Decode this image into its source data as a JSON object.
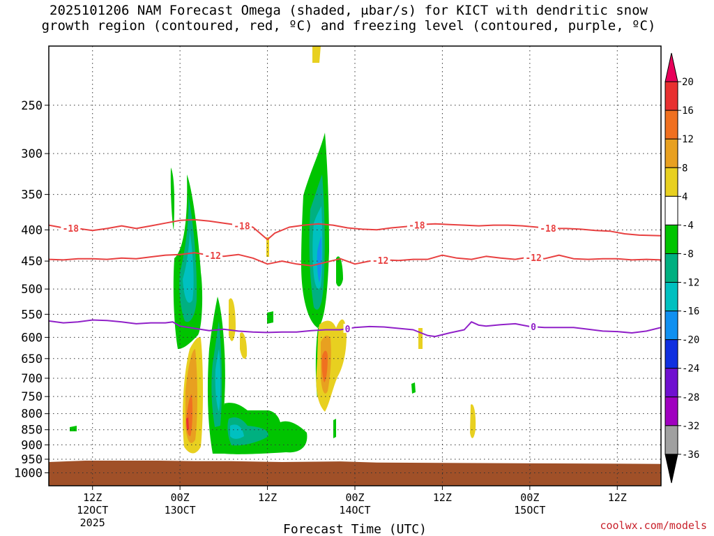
{
  "title_line1": "2025101206 NAM Forecast Omega (shaded, μbar/s) for KICT with dendritic snow",
  "title_line2": "growth region (contoured, red, ºC) and freezing level (contoured, purple, ºC)",
  "credit": "coolwx.com/models",
  "chart_data": {
    "type": "heatmap",
    "title": "2025101206 NAM Forecast Omega (shaded, μbar/s) for KICT with dendritic snow growth region (contoured, red, ºC) and freezing level (contoured, purple, ºC)",
    "xlabel": "Forecast Time (UTC)",
    "ylabel": "",
    "x_ticks": [
      {
        "hour": 6,
        "label": "12Z",
        "sub": "12OCT",
        "sub2": "2025"
      },
      {
        "hour": 18,
        "label": "00Z",
        "sub": "13OCT",
        "sub2": ""
      },
      {
        "hour": 30,
        "label": "12Z",
        "sub": "",
        "sub2": ""
      },
      {
        "hour": 42,
        "label": "00Z",
        "sub": "14OCT",
        "sub2": ""
      },
      {
        "hour": 54,
        "label": "12Z",
        "sub": "",
        "sub2": ""
      },
      {
        "hour": 66,
        "label": "00Z",
        "sub": "15OCT",
        "sub2": ""
      },
      {
        "hour": 78,
        "label": "12Z",
        "sub": "",
        "sub2": ""
      }
    ],
    "y_axis": {
      "scale": "log",
      "range_hPa": [
        1050,
        200
      ],
      "ticks": [
        250,
        300,
        350,
        400,
        450,
        500,
        550,
        600,
        650,
        700,
        750,
        800,
        850,
        900,
        950,
        1000
      ]
    },
    "x_range_hours": [
      0,
      84
    ],
    "colorbar": {
      "boundaries": [
        "20",
        "16",
        "12",
        "8",
        "4",
        "-4",
        "-8",
        "-12",
        "-16",
        "-20",
        "-24",
        "-28",
        "-32",
        "-36"
      ],
      "colors": [
        "#e8005a",
        "#e83030",
        "#f07020",
        "#e8a020",
        "#e8d020",
        "#ffffff",
        "#00c400",
        "#00b080",
        "#00c0c0",
        "#1090f0",
        "#1030e0",
        "#7010d0",
        "#a000c0",
        "#a0a0a0",
        "#000000"
      ]
    },
    "contours": [
      {
        "level": "-18",
        "color": "#e84040",
        "label": "-18",
        "points": [
          [
            0,
            393
          ],
          [
            2,
            397
          ],
          [
            4,
            398
          ],
          [
            6,
            401
          ],
          [
            8,
            398
          ],
          [
            10,
            394
          ],
          [
            12,
            398
          ],
          [
            14,
            394
          ],
          [
            16,
            390
          ],
          [
            18,
            386
          ],
          [
            20,
            385
          ],
          [
            22,
            387
          ],
          [
            24,
            390
          ],
          [
            26,
            393
          ],
          [
            28,
            396
          ],
          [
            30,
            415
          ],
          [
            31,
            405
          ],
          [
            33,
            396
          ],
          [
            35,
            393
          ],
          [
            37,
            391
          ],
          [
            39,
            393
          ],
          [
            41,
            397
          ],
          [
            43,
            399
          ],
          [
            45,
            400
          ],
          [
            47,
            397
          ],
          [
            49,
            395
          ],
          [
            51,
            392
          ],
          [
            53,
            391
          ],
          [
            55,
            392
          ],
          [
            57,
            393
          ],
          [
            59,
            394
          ],
          [
            61,
            393
          ],
          [
            63,
            393
          ],
          [
            65,
            394
          ],
          [
            67,
            396
          ],
          [
            69,
            398
          ],
          [
            71,
            398
          ],
          [
            73,
            399
          ],
          [
            75,
            401
          ],
          [
            77,
            402
          ],
          [
            79,
            406
          ],
          [
            81,
            408
          ],
          [
            84,
            409
          ]
        ],
        "label_hours": [
          3,
          26.5,
          50.5,
          68.5
        ]
      },
      {
        "level": "-12",
        "color": "#e84040",
        "label": "-12",
        "points": [
          [
            0,
            447
          ],
          [
            2,
            448
          ],
          [
            4,
            446
          ],
          [
            6,
            446
          ],
          [
            8,
            447
          ],
          [
            10,
            445
          ],
          [
            12,
            446
          ],
          [
            14,
            443
          ],
          [
            16,
            440
          ],
          [
            18,
            439
          ],
          [
            20,
            436
          ],
          [
            22,
            440
          ],
          [
            24,
            442
          ],
          [
            26,
            439
          ],
          [
            28,
            445
          ],
          [
            30,
            455
          ],
          [
            32,
            450
          ],
          [
            34,
            455
          ],
          [
            36,
            458
          ],
          [
            38,
            452
          ],
          [
            40,
            446
          ],
          [
            42,
            455
          ],
          [
            44,
            450
          ],
          [
            46,
            448
          ],
          [
            48,
            449
          ],
          [
            50,
            447
          ],
          [
            52,
            447
          ],
          [
            54,
            440
          ],
          [
            56,
            445
          ],
          [
            58,
            447
          ],
          [
            60,
            442
          ],
          [
            62,
            445
          ],
          [
            64,
            447
          ],
          [
            66,
            443
          ],
          [
            68,
            446
          ],
          [
            70,
            440
          ],
          [
            72,
            446
          ],
          [
            74,
            447
          ],
          [
            76,
            446
          ],
          [
            78,
            446
          ],
          [
            80,
            448
          ],
          [
            82,
            447
          ],
          [
            84,
            448
          ]
        ],
        "label_hours": [
          22.5,
          45.5,
          66.5
        ]
      },
      {
        "level": "0",
        "color": "#9020c8",
        "label": "0",
        "points": [
          [
            0,
            564
          ],
          [
            2,
            568
          ],
          [
            4,
            566
          ],
          [
            6,
            562
          ],
          [
            8,
            563
          ],
          [
            10,
            566
          ],
          [
            12,
            570
          ],
          [
            14,
            568
          ],
          [
            16,
            568
          ],
          [
            17,
            566
          ],
          [
            18,
            575
          ],
          [
            20,
            580
          ],
          [
            22,
            585
          ],
          [
            24,
            582
          ],
          [
            26,
            586
          ],
          [
            28,
            588
          ],
          [
            30,
            589
          ],
          [
            32,
            588
          ],
          [
            34,
            588
          ],
          [
            36,
            585
          ],
          [
            38,
            583
          ],
          [
            40,
            583
          ],
          [
            42,
            578
          ],
          [
            44,
            576
          ],
          [
            46,
            577
          ],
          [
            48,
            580
          ],
          [
            50,
            583
          ],
          [
            52,
            596
          ],
          [
            53,
            598
          ],
          [
            55,
            590
          ],
          [
            57,
            583
          ],
          [
            58,
            566
          ],
          [
            59,
            573
          ],
          [
            60,
            575
          ],
          [
            62,
            572
          ],
          [
            64,
            570
          ],
          [
            66,
            576
          ],
          [
            68,
            578
          ],
          [
            70,
            578
          ],
          [
            72,
            578
          ],
          [
            74,
            582
          ],
          [
            76,
            586
          ],
          [
            78,
            587
          ],
          [
            80,
            590
          ],
          [
            82,
            586
          ],
          [
            84,
            578
          ]
        ],
        "label_hours": [
          41,
          66.5
        ]
      }
    ],
    "surface_color": "#a05028",
    "surface_top": [
      [
        0,
        960
      ],
      [
        5,
        955
      ],
      [
        15,
        955
      ],
      [
        20,
        957
      ],
      [
        25,
        957
      ],
      [
        32,
        960
      ],
      [
        40,
        958
      ],
      [
        45,
        962
      ],
      [
        84,
        967
      ]
    ]
  }
}
